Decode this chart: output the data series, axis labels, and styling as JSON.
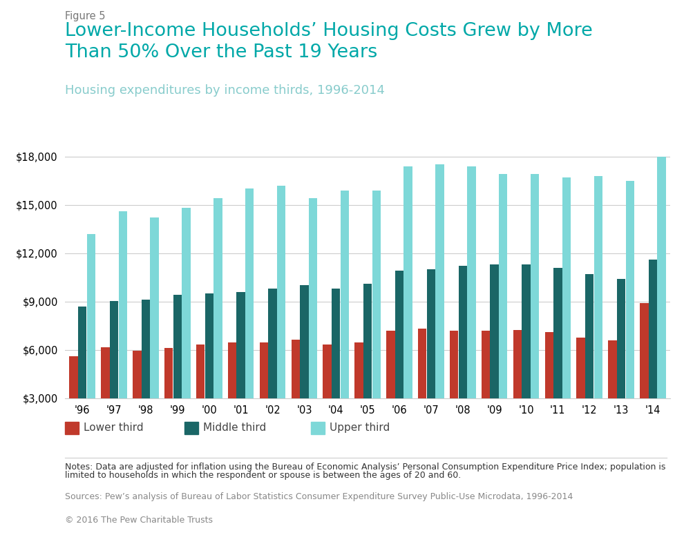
{
  "figure_label": "Figure 5",
  "title": "Lower-Income Households’ Housing Costs Grew by More\nThan 50% Over the Past 19 Years",
  "subtitle": "Housing expenditures by income thirds, 1996-2014",
  "years": [
    "'96",
    "'97",
    "'98",
    "'99",
    "'00",
    "'01",
    "'02",
    "'03",
    "'04",
    "'05",
    "'06",
    "'07",
    "'08",
    "'09",
    "'10",
    "'11",
    "'12",
    "'13",
    "'14"
  ],
  "lower_third": [
    5600,
    6150,
    5950,
    6100,
    6350,
    6450,
    6450,
    6650,
    6350,
    6450,
    7200,
    7300,
    7200,
    7200,
    7250,
    7100,
    6750,
    6600,
    8900
  ],
  "middle_third": [
    8700,
    9050,
    9100,
    9400,
    9500,
    9600,
    9800,
    10000,
    9800,
    10100,
    10900,
    11000,
    11200,
    11300,
    11300,
    11100,
    10700,
    10400,
    11600
  ],
  "upper_third": [
    13200,
    14600,
    14200,
    14800,
    15400,
    16000,
    16200,
    15400,
    15900,
    15900,
    17400,
    17500,
    17400,
    16900,
    16900,
    16700,
    16800,
    16500,
    18000
  ],
  "color_lower": "#c0392b",
  "color_middle": "#1a6666",
  "color_upper": "#7ed8d8",
  "ylim_min": 3000,
  "ylim_max": 18000,
  "ytick_values": [
    3000,
    6000,
    9000,
    12000,
    15000,
    18000
  ],
  "bg_color": "#ffffff",
  "grid_color": "#cccccc",
  "notes_line1": "Notes: Data are adjusted for inflation using the Bureau of Economic Analysis’ Personal Consumption Expenditure Price Index; population is",
  "notes_line2": "limited to households in which the respondent or spouse is between the ages of 20 and 60.",
  "sources": "Sources: Pew’s analysis of Bureau of Labor Statistics Consumer Expenditure Survey Public-Use Microdata, 1996-2014",
  "copyright": "© 2016 The Pew Charitable Trusts",
  "bar_width": 0.27,
  "bar_gap": 0.005
}
